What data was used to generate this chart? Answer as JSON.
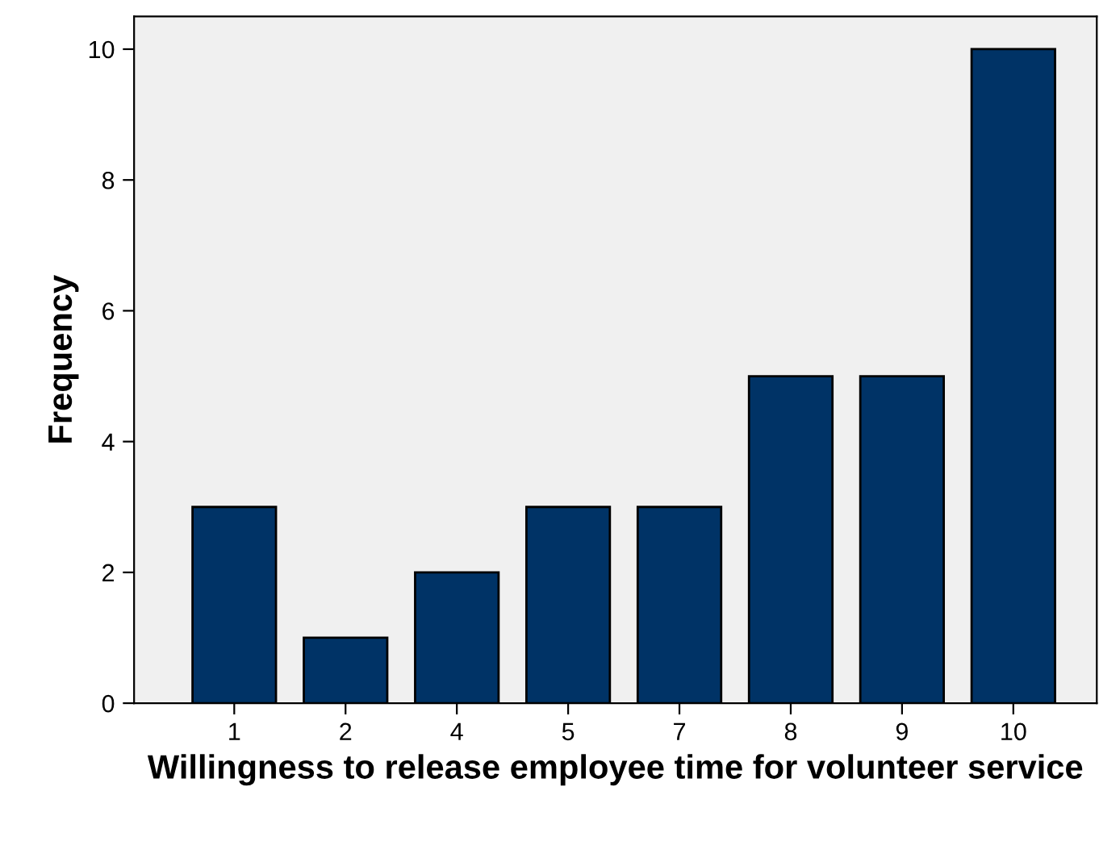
{
  "chart_data": {
    "type": "bar",
    "xlabel": "Willingness to release employee time for volunteer service",
    "ylabel": "Frequency",
    "categories": [
      "1",
      "2",
      "4",
      "5",
      "7",
      "8",
      "9",
      "10"
    ],
    "values": [
      3,
      1,
      2,
      3,
      3,
      5,
      5,
      10
    ],
    "color": "#003366",
    "ylim": [
      0,
      10.5
    ],
    "yticks": [
      0,
      2,
      4,
      6,
      8,
      10
    ],
    "grid": false
  }
}
